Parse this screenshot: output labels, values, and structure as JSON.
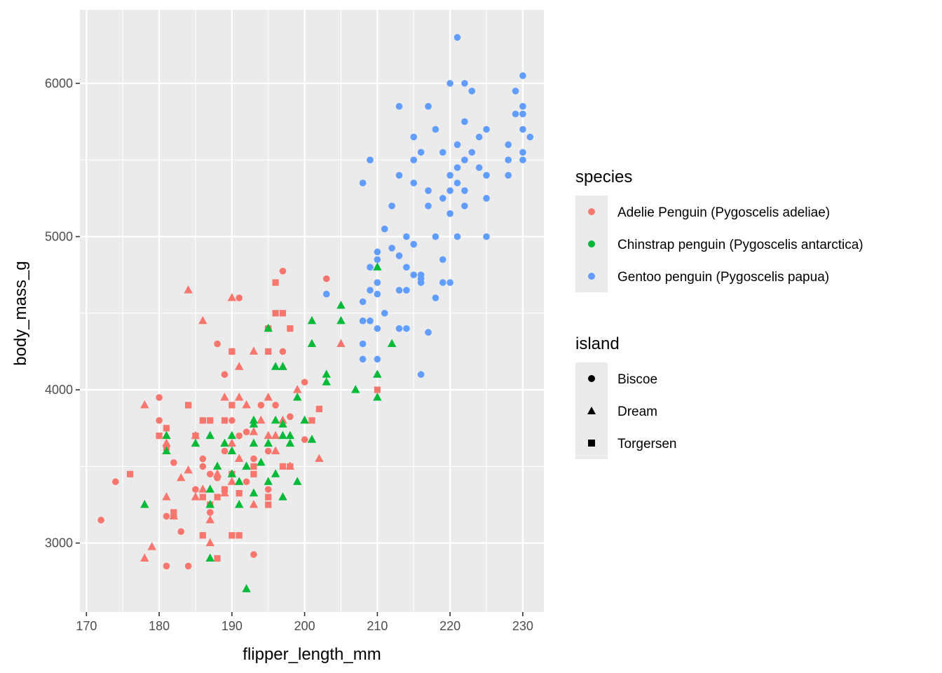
{
  "chart_data": {
    "type": "scatter",
    "xlabel": "flipper_length_mm",
    "ylabel": "body_mass_g",
    "xlim": [
      169.1,
      232.9
    ],
    "ylim": [
      2550,
      6480
    ],
    "x_ticks": [
      170,
      180,
      190,
      200,
      210,
      220,
      230
    ],
    "y_ticks": [
      3000,
      4000,
      5000,
      6000
    ],
    "x_tick_labels": [
      "170",
      "180",
      "190",
      "200",
      "210",
      "220",
      "230"
    ],
    "y_tick_labels": [
      "3000",
      "4000",
      "5000",
      "6000"
    ],
    "grid": true,
    "panel_background": "#ebebeb",
    "legend_placement": "right",
    "legends": {
      "species": {
        "title": "species",
        "entries": [
          {
            "label": "Adelie Penguin (Pygoscelis adeliae)",
            "color": "#F8766D"
          },
          {
            "label": "Chinstrap penguin (Pygoscelis antarctica)",
            "color": "#00BA38"
          },
          {
            "label": "Gentoo penguin (Pygoscelis papua)",
            "color": "#619CFF"
          }
        ]
      },
      "island": {
        "title": "island",
        "entries": [
          {
            "label": "Biscoe",
            "shape": "circle"
          },
          {
            "label": "Dream",
            "shape": "triangle"
          },
          {
            "label": "Torgersen",
            "shape": "square"
          }
        ]
      }
    },
    "series": [
      {
        "species": "Adelie Penguin (Pygoscelis adeliae)",
        "island": "Biscoe",
        "color": "#F8766D",
        "shape": "circle",
        "x": [
          172,
          174,
          180,
          180,
          181,
          181,
          182,
          182,
          183,
          184,
          184,
          185,
          185,
          186,
          186,
          187,
          187,
          188,
          188,
          189,
          189,
          190,
          190,
          191,
          191,
          192,
          192,
          193,
          193,
          194,
          195,
          195,
          195,
          196,
          197,
          197,
          198,
          198,
          200,
          200,
          203
        ],
        "y": [
          3150,
          3400,
          3950,
          3800,
          2850,
          3175,
          3175,
          3525,
          3075,
          2850,
          3900,
          3350,
          3700,
          3550,
          3500,
          3200,
          3450,
          4300,
          3425,
          4100,
          3600,
          3800,
          4250,
          3700,
          4600,
          3400,
          3725,
          2925,
          3550,
          3900,
          3350,
          4400,
          3600,
          3900,
          4775,
          4250,
          3500,
          3825,
          4050,
          3675,
          4725
        ]
      },
      {
        "species": "Adelie Penguin (Pygoscelis adeliae)",
        "island": "Dream",
        "color": "#F8766D",
        "shape": "triangle",
        "x": [
          178,
          178,
          179,
          181,
          181,
          182,
          183,
          184,
          184,
          185,
          185,
          186,
          186,
          187,
          187,
          188,
          189,
          189,
          190,
          190,
          190,
          191,
          191,
          191,
          192,
          192,
          193,
          193,
          193,
          194,
          195,
          195,
          196,
          196,
          197,
          197,
          198,
          199,
          202,
          205
        ],
        "y": [
          3900,
          2900,
          2975,
          3650,
          3300,
          3175,
          3425,
          3475,
          4650,
          3700,
          3300,
          4450,
          3350,
          3000,
          3150,
          3450,
          3325,
          3950,
          4600,
          3650,
          3400,
          3550,
          3950,
          4150,
          3900,
          3500,
          4250,
          3725,
          3250,
          3800,
          3700,
          3950,
          3700,
          3600,
          3800,
          4150,
          3500,
          4000,
          3550,
          4300
        ]
      },
      {
        "species": "Adelie Penguin (Pygoscelis adeliae)",
        "island": "Torgersen",
        "color": "#F8766D",
        "shape": "square",
        "x": [
          176,
          180,
          181,
          181,
          182,
          184,
          185,
          186,
          186,
          186,
          187,
          187,
          188,
          188,
          189,
          189,
          190,
          190,
          190,
          190,
          191,
          191,
          193,
          193,
          195,
          195,
          195,
          195,
          196,
          196,
          197,
          197,
          198,
          198,
          201,
          202,
          210
        ],
        "y": [
          3450,
          3700,
          3625,
          3750,
          3200,
          3900,
          3700,
          3800,
          3300,
          3050,
          3800,
          3250,
          2900,
          3300,
          3350,
          3800,
          3050,
          4250,
          3900,
          3450,
          3325,
          3050,
          3450,
          3500,
          4250,
          4400,
          3300,
          3250,
          4500,
          4700,
          4500,
          3500,
          3500,
          4400,
          3800,
          3875,
          4000
        ]
      },
      {
        "species": "Chinstrap penguin (Pygoscelis antarctica)",
        "island": "Dream",
        "color": "#00BA38",
        "shape": "triangle",
        "x": [
          178,
          181,
          181,
          185,
          187,
          187,
          187,
          187,
          188,
          189,
          190,
          190,
          190,
          191,
          191,
          192,
          192,
          193,
          193,
          193,
          193,
          194,
          195,
          195,
          195,
          196,
          196,
          196,
          197,
          197,
          197,
          197,
          198,
          198,
          199,
          199,
          200,
          201,
          201,
          201,
          203,
          203,
          205,
          205,
          207,
          210,
          210,
          210,
          212
        ],
        "y": [
          3250,
          3700,
          3600,
          3650,
          2900,
          3250,
          3350,
          3700,
          3500,
          3650,
          3600,
          3450,
          3700,
          3400,
          3250,
          2700,
          3500,
          3650,
          3800,
          3325,
          3775,
          3525,
          3650,
          4400,
          3400,
          3450,
          3800,
          4150,
          3300,
          3700,
          3775,
          4150,
          3700,
          3650,
          3400,
          3950,
          3800,
          3675,
          4300,
          4450,
          4050,
          4100,
          4450,
          4550,
          4000,
          4800,
          4100,
          3950,
          4300
        ]
      },
      {
        "species": "Gentoo penguin (Pygoscelis papua)",
        "island": "Biscoe",
        "color": "#619CFF",
        "shape": "circle",
        "x": [
          203,
          208,
          208,
          208,
          208,
          208,
          209,
          209,
          209,
          209,
          210,
          210,
          210,
          210,
          210,
          210,
          211,
          211,
          212,
          212,
          213,
          213,
          213,
          213,
          213,
          214,
          214,
          214,
          214,
          215,
          215,
          215,
          215,
          215,
          216,
          216,
          216,
          216,
          216,
          217,
          217,
          217,
          217,
          218,
          218,
          218,
          219,
          219,
          219,
          219,
          220,
          220,
          220,
          220,
          220,
          221,
          221,
          221,
          221,
          221,
          222,
          222,
          222,
          222,
          222,
          223,
          223,
          224,
          224,
          225,
          225,
          225,
          225,
          228,
          228,
          228,
          229,
          229,
          230,
          230,
          230,
          230,
          230,
          230,
          231
        ],
        "y": [
          4625,
          4200,
          4300,
          4450,
          4575,
          5350,
          4800,
          5500,
          4650,
          4450,
          4400,
          4900,
          4700,
          4625,
          4200,
          4850,
          4500,
          5050,
          5200,
          4925,
          5850,
          5400,
          4650,
          4400,
          4875,
          4400,
          4650,
          5000,
          4800,
          5500,
          5650,
          4950,
          4750,
          5350,
          4725,
          4750,
          5550,
          4700,
          4100,
          5850,
          5300,
          5200,
          4375,
          5700,
          5000,
          4600,
          5250,
          4850,
          4700,
          5550,
          6000,
          5300,
          4700,
          5400,
          5150,
          6300,
          5000,
          5450,
          5350,
          5600,
          5750,
          6000,
          5500,
          5300,
          5200,
          5950,
          5550,
          5650,
          5450,
          5000,
          5700,
          5400,
          5250,
          5600,
          5400,
          5500,
          5950,
          5800,
          6050,
          5850,
          5800,
          5700,
          5550,
          5500,
          5650
        ]
      }
    ]
  }
}
